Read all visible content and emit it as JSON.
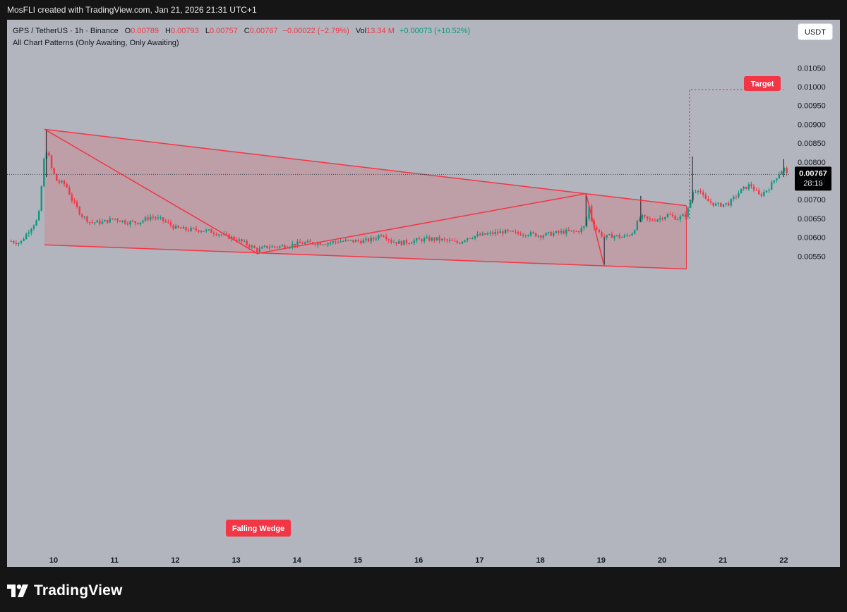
{
  "header": {
    "credit": "MosFLI created with TradingView.com, Jan 21, 2026 21:31 UTC+1"
  },
  "legend": {
    "symbol": "GPS / TetherUS · 1h · Binance",
    "open_label": "O",
    "open_value": "0.00789",
    "high_label": "H",
    "high_value": "0.00793",
    "low_label": "L",
    "low_value": "0.00757",
    "close_label": "C",
    "close_value": "0.00767",
    "change": "−0.00022 (−2.79%)",
    "vol_label": "Vol",
    "vol_value": "13.34 M",
    "vol_change": "+0.00073 (+10.52%)",
    "indicator": "All Chart Patterns (Only Awaiting, Only Awaiting)"
  },
  "currency_button": "USDT",
  "footer": {
    "brand": "TradingView"
  },
  "colors": {
    "up": "#089981",
    "down": "#f23645",
    "pattern": "#f23645",
    "background": "#b2b5be"
  },
  "chart_data": {
    "type": "candlestick",
    "symbol": "GPS / TetherUS",
    "interval": "1h",
    "exchange": "Binance",
    "x_tick_labels": [
      "10",
      "11",
      "12",
      "13",
      "14",
      "15",
      "16",
      "17",
      "18",
      "19",
      "20",
      "21",
      "22"
    ],
    "y_tick_labels": [
      "0.01050",
      "0.01000",
      "0.00950",
      "0.00900",
      "0.00850",
      "0.00800",
      "0.00750",
      "0.00700",
      "0.00650",
      "0.00600",
      "0.00550"
    ],
    "ylim": [
      0.00512,
      0.0108
    ],
    "xlim": [
      9.25,
      22.5
    ],
    "grid": false,
    "last_price": {
      "label": "0.00767",
      "value": 0.00767,
      "countdown": "28:18"
    },
    "price_path": [
      [
        9.3,
        0.0059
      ],
      [
        9.45,
        0.00585
      ],
      [
        9.6,
        0.0062
      ],
      [
        9.75,
        0.0065
      ],
      [
        9.85,
        0.0082
      ],
      [
        9.9,
        0.00835
      ],
      [
        9.95,
        0.0079
      ],
      [
        10.05,
        0.0075
      ],
      [
        10.2,
        0.0074
      ],
      [
        10.3,
        0.007
      ],
      [
        10.45,
        0.0066
      ],
      [
        10.6,
        0.0064
      ],
      [
        10.8,
        0.0064
      ],
      [
        11.0,
        0.0065
      ],
      [
        11.2,
        0.0064
      ],
      [
        11.4,
        0.0064
      ],
      [
        11.6,
        0.00655
      ],
      [
        11.8,
        0.00645
      ],
      [
        12.0,
        0.00625
      ],
      [
        12.2,
        0.0062
      ],
      [
        12.4,
        0.0062
      ],
      [
        12.6,
        0.00615
      ],
      [
        12.8,
        0.00605
      ],
      [
        13.0,
        0.00595
      ],
      [
        13.2,
        0.0058
      ],
      [
        13.35,
        0.00565
      ],
      [
        13.5,
        0.00575
      ],
      [
        13.7,
        0.00575
      ],
      [
        13.9,
        0.0058
      ],
      [
        14.1,
        0.00585
      ],
      [
        14.3,
        0.00585
      ],
      [
        14.5,
        0.00585
      ],
      [
        14.7,
        0.0059
      ],
      [
        14.9,
        0.0059
      ],
      [
        15.1,
        0.0059
      ],
      [
        15.25,
        0.00595
      ],
      [
        15.4,
        0.0061
      ],
      [
        15.55,
        0.0059
      ],
      [
        15.7,
        0.00585
      ],
      [
        15.9,
        0.0059
      ],
      [
        16.1,
        0.00595
      ],
      [
        16.3,
        0.00595
      ],
      [
        16.5,
        0.0059
      ],
      [
        16.65,
        0.00585
      ],
      [
        16.8,
        0.006
      ],
      [
        17.0,
        0.00605
      ],
      [
        17.2,
        0.0061
      ],
      [
        17.4,
        0.00615
      ],
      [
        17.6,
        0.0061
      ],
      [
        17.8,
        0.0061
      ],
      [
        18.0,
        0.00605
      ],
      [
        18.2,
        0.0061
      ],
      [
        18.4,
        0.00615
      ],
      [
        18.6,
        0.00615
      ],
      [
        18.75,
        0.0063
      ],
      [
        18.78,
        0.007
      ],
      [
        18.85,
        0.0064
      ],
      [
        18.95,
        0.00615
      ],
      [
        19.05,
        0.006
      ],
      [
        19.2,
        0.00605
      ],
      [
        19.35,
        0.006
      ],
      [
        19.5,
        0.0061
      ],
      [
        19.65,
        0.00655
      ],
      [
        19.8,
        0.00645
      ],
      [
        19.95,
        0.0065
      ],
      [
        20.1,
        0.0066
      ],
      [
        20.25,
        0.0065
      ],
      [
        20.4,
        0.0066
      ],
      [
        20.5,
        0.0072
      ],
      [
        20.6,
        0.0073
      ],
      [
        20.7,
        0.007
      ],
      [
        20.9,
        0.00685
      ],
      [
        21.1,
        0.0069
      ],
      [
        21.3,
        0.00725
      ],
      [
        21.45,
        0.0074
      ],
      [
        21.6,
        0.0071
      ],
      [
        21.75,
        0.0073
      ],
      [
        21.9,
        0.00765
      ],
      [
        22.0,
        0.00785
      ],
      [
        22.05,
        0.00767
      ]
    ],
    "pattern": {
      "name": "Falling Wedge",
      "target_label": "Target",
      "target_value": 0.00992,
      "upper_line": [
        [
          9.85,
          0.00887
        ],
        [
          20.4,
          0.00684
        ]
      ],
      "lower_line": [
        [
          9.85,
          0.0058
        ],
        [
          20.4,
          0.00516
        ]
      ],
      "zigzag": [
        [
          9.85,
          0.00887
        ],
        [
          13.35,
          0.00557
        ],
        [
          18.75,
          0.00716
        ],
        [
          19.05,
          0.00523
        ]
      ],
      "area_end_x": 20.4,
      "target_line_start_x": 20.45
    }
  }
}
